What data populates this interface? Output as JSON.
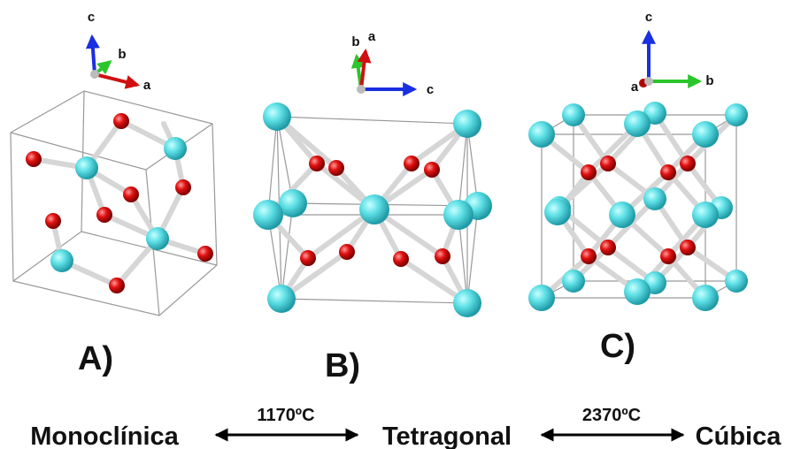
{
  "panels": [
    {
      "label": "A)",
      "axes": [
        "c",
        "b",
        "a"
      ]
    },
    {
      "label": "B)",
      "axes": [
        "b",
        "a",
        "c"
      ]
    },
    {
      "label": "C)",
      "axes": [
        "c",
        "a",
        "b"
      ]
    }
  ],
  "transitions": {
    "phases": [
      "Monoclínica",
      "Tetragonal",
      "Cúbica"
    ],
    "temperatures": [
      "1170ºC",
      "2370ºC"
    ]
  }
}
